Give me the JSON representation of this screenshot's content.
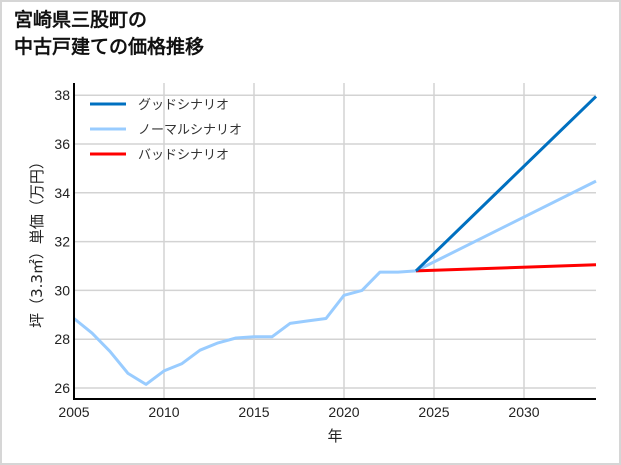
{
  "title": {
    "line1": "宮崎県三股町の",
    "line2": "中古戸建ての価格推移"
  },
  "chart_data": {
    "type": "line",
    "title": "宮崎県三股町の中古戸建ての価格推移",
    "xlabel": "年",
    "ylabel": "坪（3.3㎡）単価（万円）",
    "xlim": [
      2005,
      2034
    ],
    "ylim": [
      25.55,
      38.5
    ],
    "xticks": [
      2005,
      2010,
      2015,
      2020,
      2025,
      2030
    ],
    "yticks": [
      26,
      28,
      30,
      32,
      34,
      36,
      38
    ],
    "grid": true,
    "legend_position": "upper left",
    "history": {
      "name": "ノーマルシナリオ",
      "color": "#99ccff",
      "x": [
        2005,
        2006,
        2007,
        2008,
        2009,
        2010,
        2011,
        2012,
        2013,
        2014,
        2015,
        2016,
        2017,
        2018,
        2019,
        2020,
        2021,
        2022,
        2023,
        2024
      ],
      "y": [
        28.85,
        28.25,
        27.5,
        26.6,
        26.15,
        26.7,
        27.0,
        27.55,
        27.85,
        28.05,
        28.1,
        28.1,
        28.65,
        28.75,
        28.85,
        29.8,
        30.0,
        30.75,
        30.75,
        30.8
      ]
    },
    "series": [
      {
        "name": "グッドシナリオ",
        "color": "#0070c0",
        "x": [
          2024,
          2034
        ],
        "y": [
          30.8,
          37.95
        ]
      },
      {
        "name": "ノーマルシナリオ",
        "color": "#99ccff",
        "x": [
          2024,
          2034
        ],
        "y": [
          30.8,
          34.48
        ]
      },
      {
        "name": "バッドシナリオ",
        "color": "#ff0000",
        "x": [
          2024,
          2034
        ],
        "y": [
          30.8,
          31.05
        ]
      }
    ]
  },
  "legend": [
    {
      "label": "グッドシナリオ",
      "color": "#0070c0"
    },
    {
      "label": "ノーマルシナリオ",
      "color": "#99ccff"
    },
    {
      "label": "バッドシナリオ",
      "color": "#ff0000"
    }
  ],
  "axes": {
    "xlabel": "年",
    "ylabel": "坪（3.3㎡）単価（万円）"
  }
}
